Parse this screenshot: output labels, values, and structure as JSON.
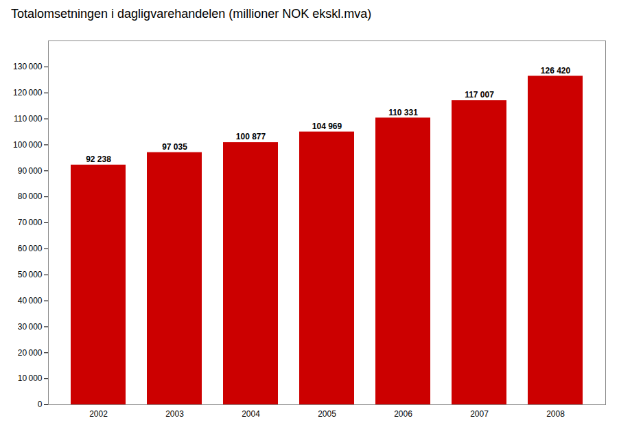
{
  "chart_data": {
    "type": "bar",
    "title": "Totalomsetningen i dagligvarehandelen (millioner NOK ekskl.mva)",
    "categories": [
      "2002",
      "2003",
      "2004",
      "2005",
      "2006",
      "2007",
      "2008"
    ],
    "values": [
      92238,
      97035,
      100877,
      104969,
      110331,
      117007,
      126420
    ],
    "value_labels": [
      "92 238",
      "97 035",
      "100 877",
      "104 969",
      "110 331",
      "117 007",
      "126 420"
    ],
    "data_labels": true,
    "color": "#CC0000",
    "ylim": [
      0,
      140000
    ],
    "yticks": [
      0,
      {
        "value": 10000,
        "label": "10 000"
      },
      {
        "value": 20000,
        "label": "20 000"
      },
      {
        "value": 30000,
        "label": "30 000"
      },
      {
        "value": 40000,
        "label": "40 000"
      },
      {
        "value": 50000,
        "label": "50 000"
      },
      {
        "value": 60000,
        "label": "60 000"
      },
      {
        "value": 70000,
        "label": "70 000"
      },
      {
        "value": 80000,
        "label": "80 000"
      },
      {
        "value": 90000,
        "label": "90 000"
      },
      {
        "value": 100000,
        "label": "100 000"
      },
      {
        "value": 110000,
        "label": "110 000"
      },
      {
        "value": 120000,
        "label": "120 000"
      },
      {
        "value": 130000,
        "label": "130 000"
      }
    ],
    "grid": false
  }
}
